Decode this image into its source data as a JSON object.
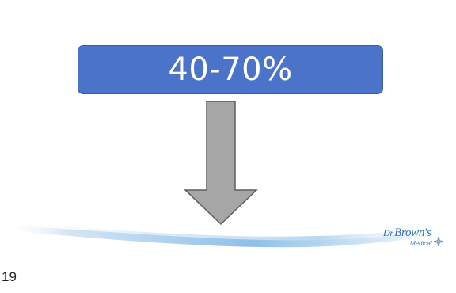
{
  "slide": {
    "stat_label": "40-70%",
    "stat_box_color": "#4a73c9",
    "arrow_color": "#a6a6a6",
    "arrow_icon": "down-arrow-icon"
  },
  "logo": {
    "prefix": "Dr.",
    "name": "Brown's",
    "sub": "Medical",
    "icon": "sparkle-icon"
  },
  "footer": {
    "page_number": "19"
  }
}
